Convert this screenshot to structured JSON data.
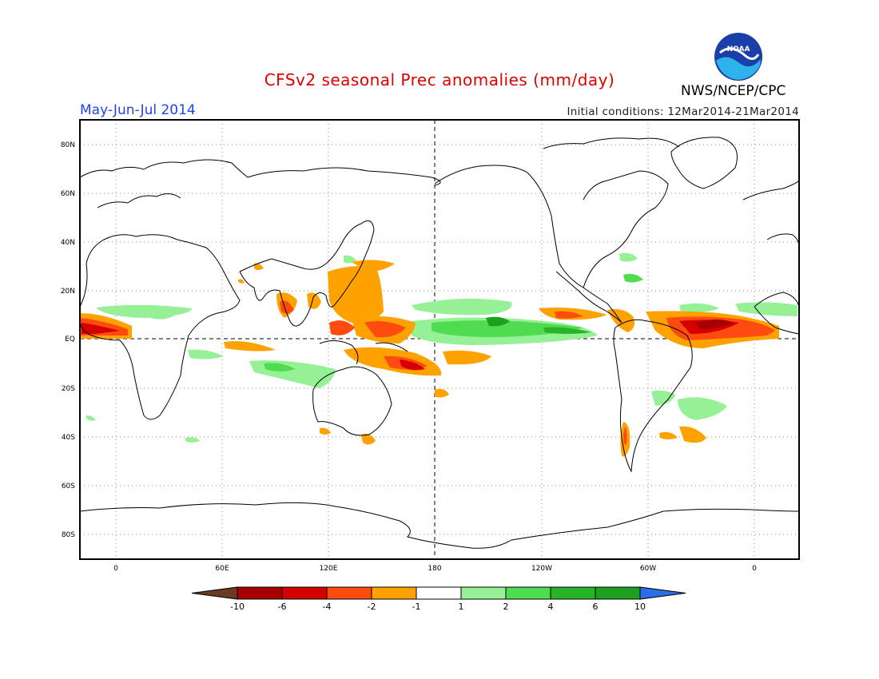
{
  "title": "CFSv2 seasonal Prec anomalies (mm/day)",
  "period": "May-Jun-Jul 2014",
  "initial_conditions": "Initial conditions: 12Mar2014-21Mar2014",
  "agency": "NWS/NCEP/CPC",
  "logo_text": "NOAA",
  "map": {
    "lat_labels": [
      "80N",
      "60N",
      "40N",
      "20N",
      "EQ",
      "20S",
      "40S",
      "60S",
      "80S"
    ],
    "lon_labels": [
      "0",
      "60E",
      "120E",
      "180",
      "120W",
      "60W",
      "0"
    ]
  },
  "colorbar": {
    "labels": [
      "-10",
      "-6",
      "-4",
      "-2",
      "-1",
      "1",
      "2",
      "4",
      "6",
      "10"
    ],
    "colors": {
      "lt_-10": "#6b3a22",
      "-10_-6": "#a80000",
      "-6_-4": "#d40000",
      "-4_-2": "#ff4b10",
      "-2_-1": "#ffa200",
      "-1_1": "#ffffff",
      "1_2": "#96f096",
      "2_4": "#50dc50",
      "4_6": "#28b428",
      "6_10": "#1ea01e",
      "gt_10": "#2d6ee6"
    }
  }
}
